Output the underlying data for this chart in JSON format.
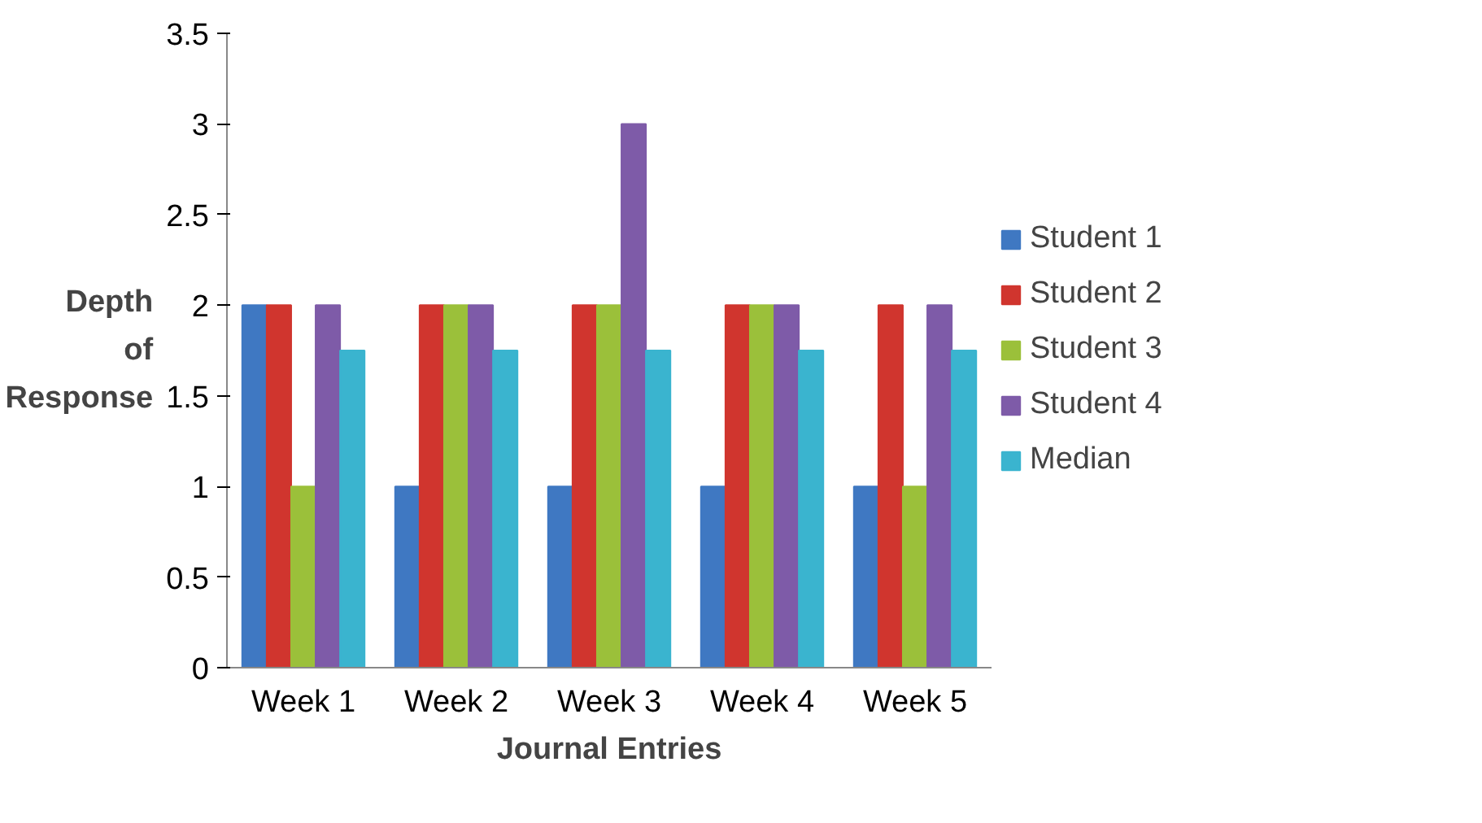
{
  "chart_data": {
    "type": "bar",
    "xlabel": "Journal Entries",
    "ylabel": "Depth of Response",
    "categories": [
      "Week 1",
      "Week 2",
      "Week 3",
      "Week 4",
      "Week 5"
    ],
    "series": [
      {
        "name": "Student 1",
        "color": "#3f78c2",
        "values": [
          2,
          1,
          1,
          1,
          1
        ]
      },
      {
        "name": "Student 2",
        "color": "#d0352e",
        "values": [
          2,
          2,
          2,
          2,
          2
        ]
      },
      {
        "name": "Student 3",
        "color": "#9bc03a",
        "values": [
          1,
          2,
          2,
          2,
          1
        ]
      },
      {
        "name": "Student 4",
        "color": "#7e5ba8",
        "values": [
          2,
          2,
          3,
          2,
          2
        ]
      },
      {
        "name": "Median",
        "color": "#3ab4cf",
        "values": [
          1.75,
          1.75,
          1.75,
          1.75,
          1.75
        ]
      }
    ],
    "ylim": [
      0,
      3.5
    ],
    "yticks": [
      0,
      0.5,
      1,
      1.5,
      2,
      2.5,
      3,
      3.5
    ],
    "grid": false,
    "legend": "right"
  }
}
